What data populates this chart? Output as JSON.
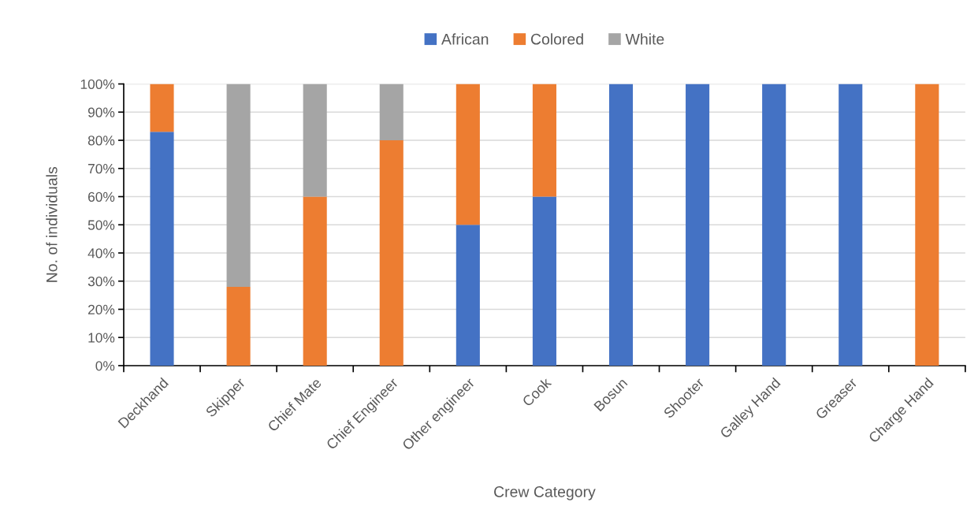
{
  "chart_data": {
    "type": "bar",
    "stacked": true,
    "xlabel": "Crew Category",
    "ylabel": "No. of individuals",
    "categories": [
      "Deckhand",
      "Skipper",
      "Chief Mate",
      "Chief Engineer",
      "Other engineer",
      "Cook",
      "Bosun",
      "Shooter",
      "Galley Hand",
      "Greaser",
      "Charge Hand"
    ],
    "series": [
      {
        "name": "African",
        "color": "#4472c4",
        "values": [
          83,
          null,
          null,
          null,
          50,
          60,
          100,
          100,
          100,
          100,
          null
        ]
      },
      {
        "name": "Colored",
        "color": "#ed7d31",
        "values": [
          17,
          28,
          60,
          80,
          50,
          40,
          null,
          null,
          null,
          null,
          100
        ]
      },
      {
        "name": "White",
        "color": "#a5a5a5",
        "values": [
          null,
          72,
          40,
          20,
          null,
          null,
          null,
          null,
          null,
          null,
          null
        ]
      }
    ],
    "ylim": [
      0,
      100
    ],
    "yticks": [
      {
        "value": 0,
        "label": "0%"
      },
      {
        "value": 10,
        "label": "10%"
      },
      {
        "value": 20,
        "label": "20%"
      },
      {
        "value": 30,
        "label": "30%"
      },
      {
        "value": 40,
        "label": "40%"
      },
      {
        "value": 50,
        "label": "50%"
      },
      {
        "value": 60,
        "label": "60%"
      },
      {
        "value": 70,
        "label": "70%"
      },
      {
        "value": 80,
        "label": "80%"
      },
      {
        "value": 90,
        "label": "90%"
      },
      {
        "value": 100,
        "label": "100%"
      }
    ],
    "grid": "y",
    "legend": "top"
  }
}
